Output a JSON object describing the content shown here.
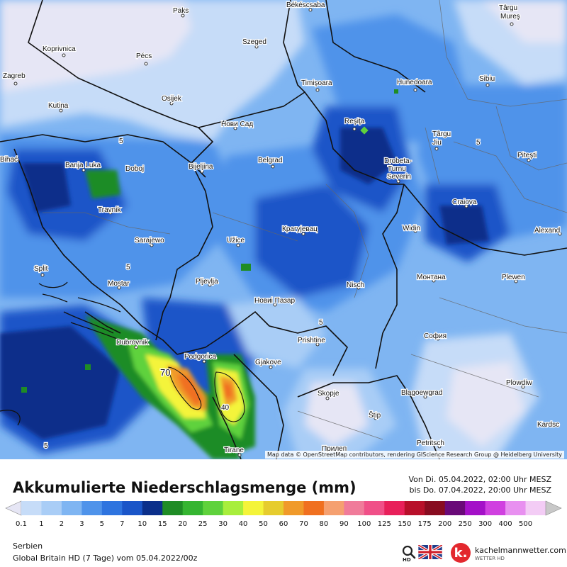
{
  "title": "Akkumulierte Niederschlagsmenge (mm)",
  "period": {
    "from": "Von Di. 05.04.2022, 02:00 Uhr MESZ",
    "to": "bis Do. 07.04.2022, 20:00 Uhr MESZ"
  },
  "region": "Serbien",
  "model": "Global Britain HD  (7 Tage)  vom  05.04.2022/00z",
  "brand": {
    "name": "kachelmannwetter.com",
    "sub": "WETTER HD",
    "logo_letter": "k.",
    "hd_label": "HD"
  },
  "attribution": "Map data © OpenStreetMap contributors, rendering GIScience Research Group @ Heidelberg University",
  "scale": {
    "labels": [
      "0.1",
      "1",
      "2",
      "3",
      "5",
      "7",
      "10",
      "15",
      "20",
      "25",
      "30",
      "40",
      "50",
      "60",
      "70",
      "80",
      "90",
      "100",
      "125",
      "150",
      "175",
      "200",
      "250",
      "300",
      "400",
      "500"
    ],
    "colors": [
      "#e6e6f5",
      "#c6dcf8",
      "#a9cdf6",
      "#7fb5f2",
      "#4f93ea",
      "#2e74df",
      "#1a55c8",
      "#0b2f8a",
      "#1f8c25",
      "#35b531",
      "#5fd23c",
      "#a8ee3c",
      "#f4f43a",
      "#e6cc2e",
      "#f09a2a",
      "#f07020",
      "#f5a070",
      "#f07b9a",
      "#f05088",
      "#e8205a",
      "#b8102a",
      "#880c20",
      "#6a0a78",
      "#a410c8",
      "#d040e0",
      "#e890f0",
      "#f3ccf5",
      "#c8c8c8"
    ]
  },
  "cities": [
    {
      "name": "Pécs"
    },
    {
      "name": "Szeged"
    },
    {
      "name": "Timişoara"
    },
    {
      "name": "Reşiţa"
    },
    {
      "name": "Osijek"
    },
    {
      "name": "Нови Сад"
    },
    {
      "name": "Belgrad"
    },
    {
      "name": "Bijeljina"
    },
    {
      "name": "Banja Luka"
    },
    {
      "name": "Doboj"
    },
    {
      "name": "Travnik"
    },
    {
      "name": "Sarajewo"
    },
    {
      "name": "Užice"
    },
    {
      "name": "Крагујевац"
    },
    {
      "name": "Nisch"
    },
    {
      "name": "Новиi Пазар"
    },
    {
      "name": "Pljevlja"
    },
    {
      "name": "Mostar"
    },
    {
      "name": "Split"
    },
    {
      "name": "Dubrovnik"
    },
    {
      "name": "Podgorica"
    },
    {
      "name": "Gjakove"
    },
    {
      "name": "Prishtine"
    },
    {
      "name": "Skopje"
    },
    {
      "name": "Tirane"
    },
    {
      "name": "Widin"
    },
    {
      "name": "Craiova"
    },
    {
      "name": "Drobeta-"
    },
    {
      "name": "Turnu"
    },
    {
      "name": "Severin"
    },
    {
      "name": "Монтана"
    },
    {
      "name": "София"
    },
    {
      "name": "Blagoewgrad"
    },
    {
      "name": "Plowdiw"
    },
    {
      "name": "Plewen"
    },
    {
      "name": "Hunedoara"
    },
    {
      "name": "Sibiu"
    },
    {
      "name": "Târgu"
    },
    {
      "name": "Jiu"
    },
    {
      "name": "Piteşti"
    },
    {
      "name": "Zagreb"
    },
    {
      "name": "Kutina"
    },
    {
      "name": "Koprivnica"
    },
    {
      "name": "Paks"
    },
    {
      "name": "Békéscsaba"
    },
    {
      "name": "Alexand"
    },
    {
      "name": "Kardsc"
    },
    {
      "name": "Petritsch"
    },
    {
      "name": "Štip"
    },
    {
      "name": "Прилеп"
    },
    {
      "name": "Bihać"
    },
    {
      "name": "Târgu"
    },
    {
      "name": "Mureş"
    }
  ],
  "contour_labels": [
    "70",
    "40",
    "5",
    "5",
    "5",
    "5",
    "5"
  ]
}
